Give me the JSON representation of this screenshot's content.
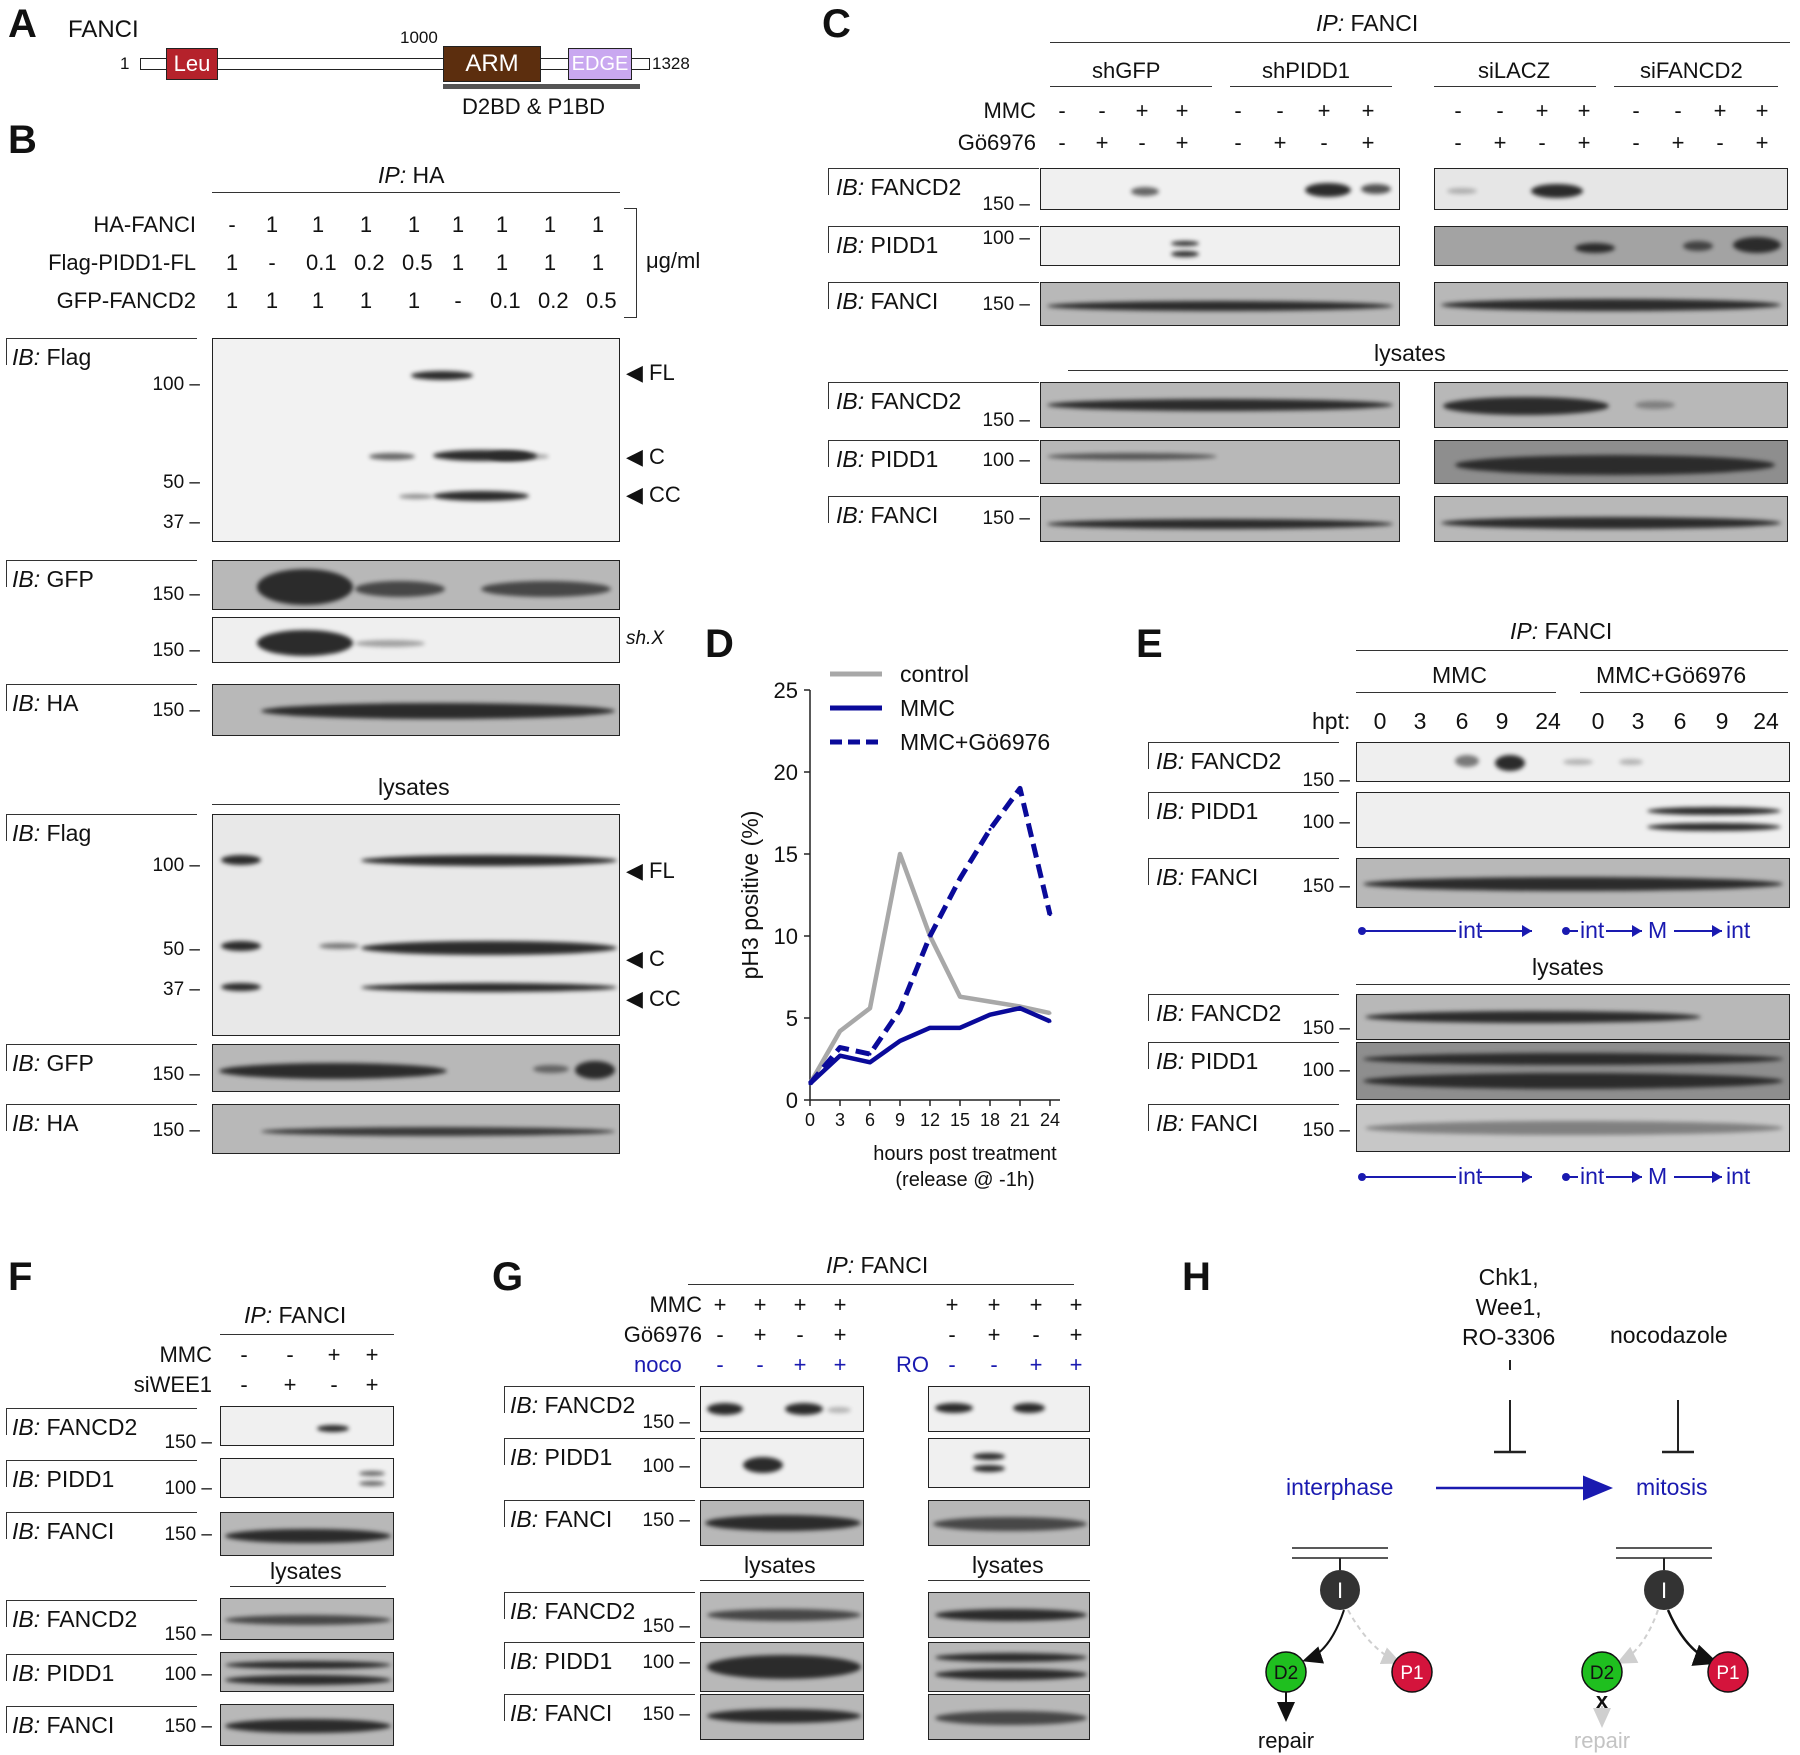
{
  "panels": {
    "A": "A",
    "B": "B",
    "C": "C",
    "D": "D",
    "E": "E",
    "F": "F",
    "G": "G",
    "H": "H"
  },
  "panel_a": {
    "protein": "FANCI",
    "start": "1",
    "end": "1328",
    "pos_1000": "1000",
    "domains": [
      "Leu",
      "ARM",
      "EDGE"
    ],
    "region_label": "D2BD & P1BD",
    "colors": {
      "leu": "#b5222b",
      "arm": "#5c2e0e",
      "edge": "#c9a8f0"
    }
  },
  "panel_b": {
    "ip": "IP:",
    "ip_target": "HA",
    "rows": [
      {
        "label": "HA-FANCI",
        "values": [
          "-",
          "1",
          "1",
          "1",
          "1",
          "1",
          "1",
          "1",
          "1"
        ]
      },
      {
        "label": "Flag-PIDD1-FL",
        "values": [
          "1",
          "-",
          "0.1",
          "0.2",
          "0.5",
          "1",
          "1",
          "1",
          "1"
        ]
      },
      {
        "label": "GFP-FANCD2",
        "values": [
          "1",
          "1",
          "1",
          "1",
          "1",
          "-",
          "0.1",
          "0.2",
          "0.5"
        ]
      }
    ],
    "unit": "μg/ml",
    "ib": "IB:",
    "blots_ip": [
      "Flag",
      "GFP",
      "HA"
    ],
    "sh_x": "sh.X",
    "lysates": "lysates",
    "blots_lys": [
      "Flag",
      "GFP",
      "HA"
    ],
    "markers": [
      "100",
      "50",
      "37",
      "150"
    ],
    "arrows": [
      "FL",
      "C",
      "CC"
    ]
  },
  "panel_c": {
    "ip": "IP:",
    "ip_target": "FANCI",
    "groups": [
      "shGFP",
      "shPIDD1",
      "siLACZ",
      "siFANCD2"
    ],
    "rows": [
      {
        "label": "MMC",
        "values": [
          "-",
          "-",
          "+",
          "+",
          "-",
          "-",
          "+",
          "+",
          "-",
          "-",
          "+",
          "+",
          "-",
          "-",
          "+",
          "+"
        ]
      },
      {
        "label": "Gö6976",
        "values": [
          "-",
          "+",
          "-",
          "+",
          "-",
          "+",
          "-",
          "+",
          "-",
          "+",
          "-",
          "+",
          "-",
          "+",
          "-",
          "+"
        ]
      }
    ],
    "blots": [
      "FANCD2",
      "PIDD1",
      "FANCI"
    ],
    "lysates": "lysates",
    "markers": [
      "150",
      "100",
      "150"
    ]
  },
  "panel_d": {
    "chart_data": {
      "type": "line",
      "x": [
        0,
        3,
        6,
        9,
        12,
        15,
        18,
        21,
        24
      ],
      "series": [
        {
          "name": "control",
          "values": [
            1,
            4.2,
            5.6,
            15,
            10,
            6.3,
            6,
            5.7,
            5.3
          ],
          "color": "#a8a8a8",
          "dash": false
        },
        {
          "name": "MMC",
          "values": [
            1,
            2.7,
            2.3,
            3.6,
            4.4,
            4.4,
            5.2,
            5.6,
            4.8
          ],
          "color": "#0a0a9a",
          "dash": false
        },
        {
          "name": "MMC+Gö6976",
          "values": [
            1,
            3.2,
            2.8,
            5.5,
            10,
            13.5,
            16.5,
            19,
            11.3
          ],
          "color": "#0a0a9a",
          "dash": true
        }
      ],
      "ylabel": "pH3 positive  (%)",
      "xlabel": "hours post treatment",
      "xlabel2": "(release @ -1h)",
      "ylim": [
        0,
        25
      ],
      "yticks": [
        0,
        5,
        10,
        15,
        20,
        25
      ],
      "xticks": [
        0,
        3,
        6,
        9,
        12,
        15,
        18,
        21,
        24
      ]
    }
  },
  "panel_e": {
    "ip": "IP:",
    "ip_target": "FANCI",
    "groups": [
      "MMC",
      "MMC+Gö6976"
    ],
    "hpt_label": "hpt:",
    "hpt": [
      "0",
      "3",
      "6",
      "9",
      "24",
      "0",
      "3",
      "6",
      "9",
      "24"
    ],
    "blots": [
      "FANCD2",
      "PIDD1",
      "FANCI"
    ],
    "lysates": "lysates",
    "phase": [
      "int",
      "int",
      "M",
      "int"
    ],
    "markers": [
      "150",
      "100",
      "150"
    ]
  },
  "panel_f": {
    "ip": "IP:",
    "ip_target": "FANCI",
    "rows": [
      {
        "label": "MMC",
        "values": [
          "-",
          "-",
          "+",
          "+"
        ]
      },
      {
        "label": "siWEE1",
        "values": [
          "-",
          "+",
          "-",
          "+"
        ]
      }
    ],
    "blots": [
      "FANCD2",
      "PIDD1",
      "FANCI"
    ],
    "lysates": "lysates",
    "markers": [
      "150",
      "100",
      "150"
    ]
  },
  "panel_g": {
    "ip": "IP:",
    "ip_target": "FANCI",
    "rows": [
      {
        "label": "MMC",
        "values": [
          "+",
          "+",
          "+",
          "+"
        ]
      },
      {
        "label": "Gö6976",
        "values": [
          "-",
          "+",
          "-",
          "+"
        ]
      }
    ],
    "noco": {
      "label": "noco",
      "values": [
        "-",
        "-",
        "+",
        "+"
      ]
    },
    "ro": {
      "label": "RO",
      "values": [
        "-",
        "-",
        "+",
        "+"
      ]
    },
    "blots": [
      "FANCD2",
      "PIDD1",
      "FANCI"
    ],
    "lysates": "lysates",
    "markers": [
      "150",
      "100",
      "150"
    ]
  },
  "panel_h": {
    "inhibitor1_line1": "Chk1,",
    "inhibitor1_line2": "Wee1,",
    "inhibitor1_line3": "RO-3306",
    "inhibitor2": "nocodazole",
    "phase1": "interphase",
    "phase2": "mitosis",
    "node_i": "I",
    "node_d2": "D2",
    "node_p1": "P1",
    "repair": "repair",
    "x_mark": "x",
    "colors": {
      "d2": "#1fbf1f",
      "p1": "#d4143c",
      "i": "#333333",
      "blue": "#1a1ab0"
    }
  }
}
